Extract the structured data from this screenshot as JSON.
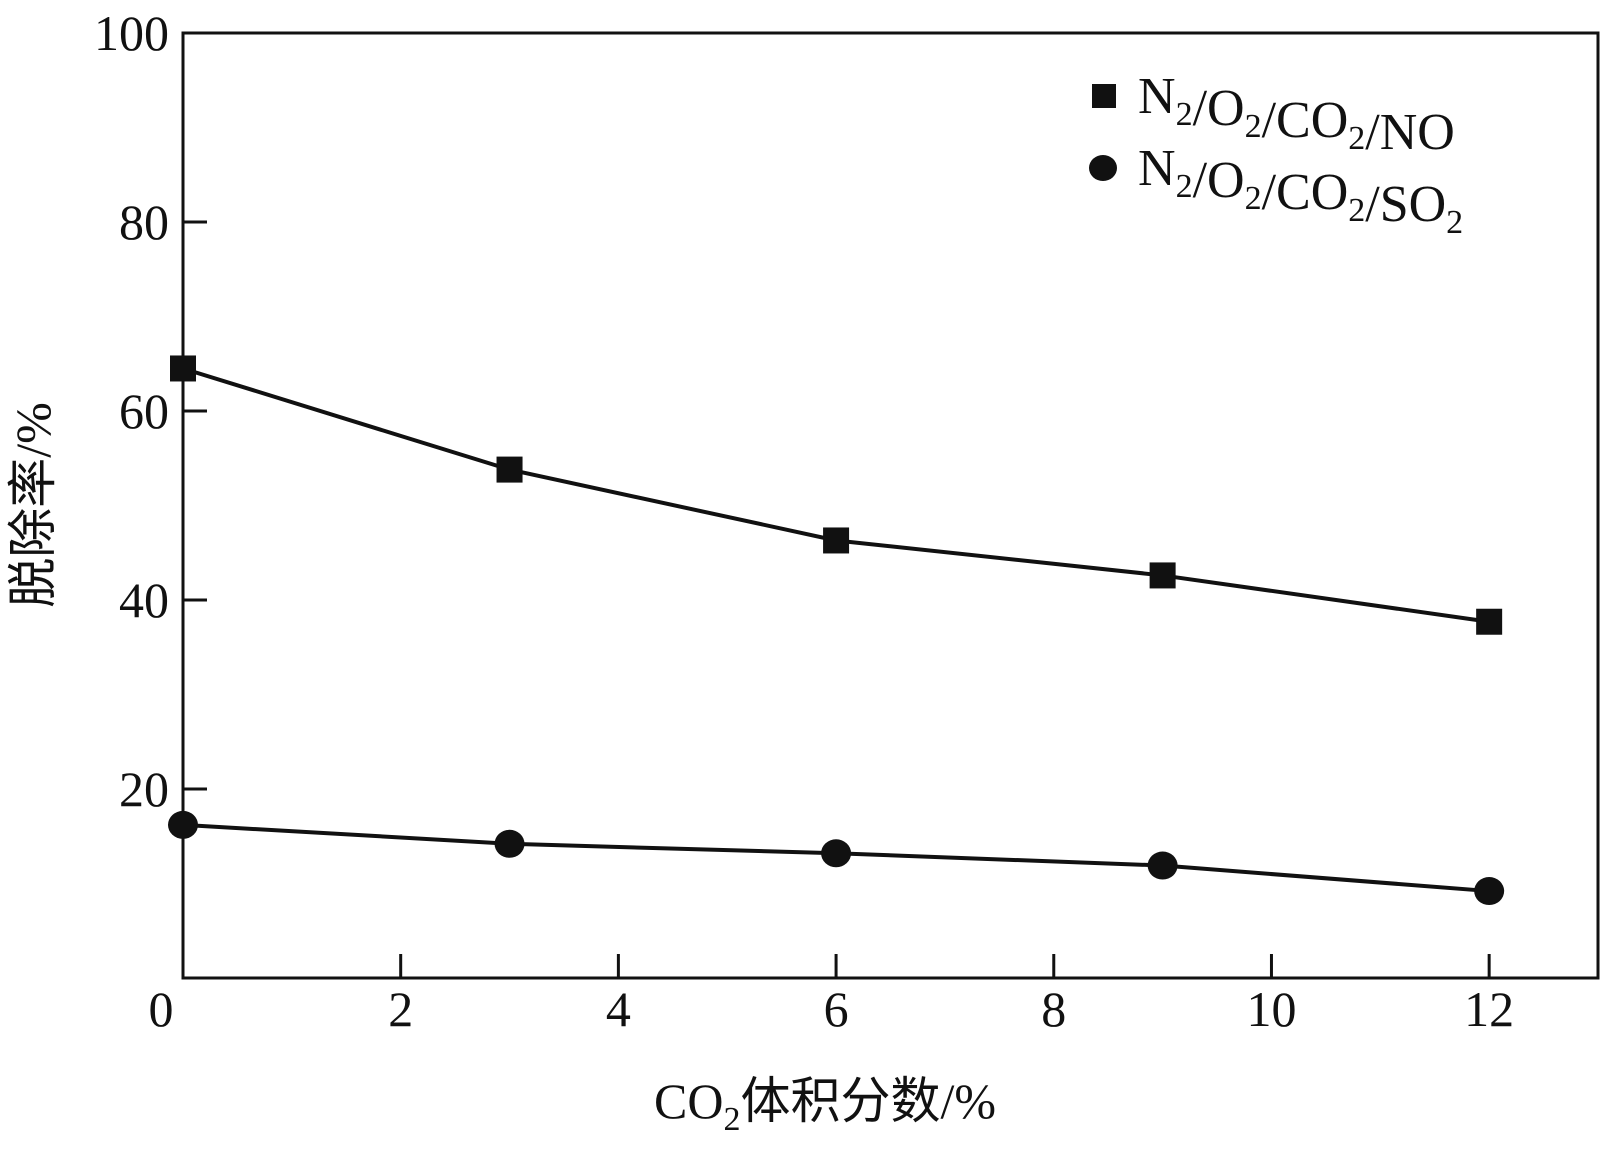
{
  "chart_data": {
    "type": "line",
    "title": "",
    "xlabel": "CO₂体积分数/%",
    "ylabel": "脱除率/%",
    "xlabel_parts": {
      "pre": "CO",
      "sub": "2",
      "post": "体积分数/%"
    },
    "xlim": [
      0,
      13
    ],
    "ylim": [
      0,
      100
    ],
    "x_ticks": [
      0,
      2,
      4,
      6,
      8,
      10,
      12
    ],
    "y_ticks": [
      20,
      40,
      60,
      80,
      100
    ],
    "grid": false,
    "legend_position": "top-right",
    "series": [
      {
        "name": "N₂/O₂/CO₂/NO",
        "name_parts": [
          [
            "N",
            "2"
          ],
          [
            "/O",
            "2"
          ],
          [
            "/CO",
            "2"
          ],
          [
            "/NO",
            ""
          ]
        ],
        "marker": "square",
        "x": [
          0,
          3,
          6,
          9,
          12
        ],
        "y": [
          64.5,
          53.8,
          46.3,
          42.6,
          37.7
        ]
      },
      {
        "name": "N₂/O₂/CO₂/SO₂",
        "name_parts": [
          [
            "N",
            "2"
          ],
          [
            "/O",
            "2"
          ],
          [
            "/CO",
            "2"
          ],
          [
            "/SO",
            "2"
          ]
        ],
        "marker": "circle",
        "x": [
          0,
          3,
          6,
          9,
          12
        ],
        "y": [
          16.2,
          14.2,
          13.2,
          11.9,
          9.2
        ]
      }
    ]
  }
}
